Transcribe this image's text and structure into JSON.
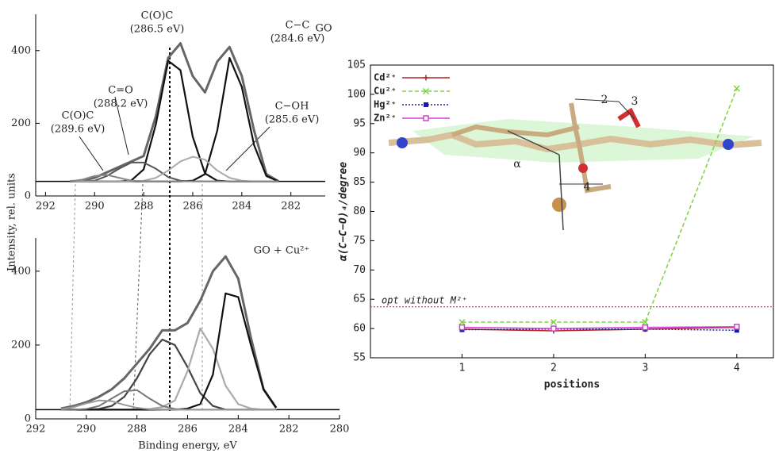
{
  "chart_data": [
    {
      "type": "line",
      "ylabel": "Intensity, rel. units",
      "xlim": [
        292.4,
        280.6
      ],
      "xticks": [
        292,
        290,
        288,
        286,
        284,
        282
      ],
      "ylim": [
        0,
        500
      ],
      "yticks": [
        0,
        200,
        400
      ],
      "baseline": 40,
      "x": [
        291,
        290.5,
        290,
        289.5,
        289,
        288.5,
        288,
        287.5,
        287,
        286.5,
        286,
        285.5,
        285,
        284.5,
        284,
        283.5,
        283,
        282.5
      ],
      "series": [
        {
          "color": "#666666",
          "width": 3,
          "values": [
            40,
            42,
            50,
            65,
            80,
            95,
            110,
            220,
            380,
            420,
            330,
            285,
            370,
            410,
            330,
            180,
            60,
            40
          ]
        },
        {
          "color": "#111111",
          "width": 2.2,
          "values": [
            40,
            40,
            40,
            40,
            40,
            43,
            73,
            198,
            372,
            346,
            163,
            62,
            42,
            40,
            40,
            40,
            40,
            40
          ]
        },
        {
          "color": "#111111",
          "width": 2.2,
          "values": [
            40,
            40,
            40,
            40,
            40,
            40,
            40,
            40,
            40,
            40,
            42,
            60,
            180,
            380,
            300,
            140,
            55,
            40
          ]
        },
        {
          "color": "#555555",
          "width": 2,
          "values": [
            40,
            40,
            42,
            55,
            75,
            92,
            92,
            75,
            52,
            42,
            40,
            40,
            40,
            40,
            40,
            40,
            40,
            40
          ]
        },
        {
          "color": "#aaaaaa",
          "width": 2,
          "values": [
            40,
            40,
            40,
            40,
            40,
            40,
            42,
            50,
            70,
            95,
            108,
            100,
            70,
            50,
            42,
            40,
            40,
            40
          ]
        },
        {
          "color": "#888888",
          "width": 2,
          "values": [
            40,
            45,
            55,
            58,
            50,
            42,
            40,
            40,
            40,
            40,
            40,
            40,
            40,
            40,
            40,
            40,
            40,
            40
          ]
        }
      ],
      "annotations": [
        {
          "lines": [
            "C(O)C",
            "(286.5 eV)"
          ]
        },
        {
          "lines": [
            "C−C",
            "(284.6 eV)"
          ]
        },
        {
          "lines": [
            "GO"
          ]
        },
        {
          "lines": [
            "C=O",
            "(288.2 eV)"
          ]
        },
        {
          "lines": [
            "C(O)C",
            "(289.6 eV)"
          ]
        },
        {
          "lines": [
            "C−OH",
            "(285.6 eV)"
          ]
        }
      ]
    },
    {
      "type": "line",
      "xlabel": "Binding energy, eV",
      "xlim": [
        292,
        280
      ],
      "xticks": [
        292,
        290,
        288,
        286,
        284,
        282,
        280
      ],
      "ylim": [
        0,
        490
      ],
      "yticks": [
        0,
        200,
        400
      ],
      "baseline": 25,
      "x": [
        291,
        290.5,
        290,
        289.5,
        289,
        288.5,
        288,
        287.5,
        287,
        286.5,
        286,
        285.5,
        285,
        284.5,
        284,
        283.5,
        283,
        282.5
      ],
      "series": [
        {
          "color": "#666666",
          "width": 3,
          "values": [
            28,
            35,
            45,
            60,
            80,
            110,
            150,
            190,
            240,
            240,
            260,
            320,
            400,
            440,
            380,
            220,
            80,
            30
          ]
        },
        {
          "color": "#444444",
          "width": 2.2,
          "values": [
            25,
            25,
            25,
            27,
            35,
            60,
            110,
            175,
            215,
            200,
            140,
            70,
            35,
            25,
            25,
            25,
            25,
            25
          ]
        },
        {
          "color": "#aaaaaa",
          "width": 2.2,
          "values": [
            25,
            25,
            25,
            25,
            25,
            25,
            25,
            27,
            32,
            50,
            130,
            245,
            190,
            90,
            40,
            28,
            25,
            25
          ]
        },
        {
          "color": "#111111",
          "width": 2.2,
          "values": [
            25,
            25,
            25,
            25,
            25,
            25,
            25,
            25,
            25,
            25,
            28,
            40,
            120,
            340,
            330,
            200,
            80,
            30
          ]
        },
        {
          "color": "#777777",
          "width": 2,
          "values": [
            25,
            25,
            27,
            35,
            55,
            75,
            78,
            55,
            35,
            27,
            25,
            25,
            25,
            25,
            25,
            25,
            25,
            25
          ]
        },
        {
          "color": "#999999",
          "width": 2,
          "values": [
            26,
            32,
            42,
            50,
            48,
            38,
            30,
            26,
            25,
            25,
            25,
            25,
            25,
            25,
            25,
            25,
            25,
            25
          ]
        }
      ],
      "annotations": [
        {
          "lines": [
            "GO + Cu²⁺"
          ]
        }
      ]
    },
    {
      "type": "line",
      "xlabel": "positions",
      "ylabel": "α(C−C−O)₄/degree",
      "xlim": [
        0,
        4.4
      ],
      "xticks": [
        1,
        2,
        3,
        4
      ],
      "ylim": [
        55,
        105
      ],
      "yticks": [
        55,
        60,
        65,
        70,
        75,
        80,
        85,
        90,
        95,
        100,
        105
      ],
      "x": [
        1,
        2,
        3,
        4
      ],
      "series": [
        {
          "name": "Cd²⁺",
          "color": "#b22222",
          "dash": "solid",
          "marker": "plus",
          "values": [
            59.9,
            59.6,
            59.9,
            60.2
          ]
        },
        {
          "name": "Cu²⁺",
          "color": "#7ed23c",
          "dash": "dashed",
          "marker": "cross",
          "values": [
            61.1,
            61.1,
            61.1,
            101
          ]
        },
        {
          "name": "Hg²⁺",
          "color": "#1a1aa8",
          "dash": "dotted",
          "marker": "square",
          "values": [
            59.8,
            59.9,
            59.9,
            59.7
          ]
        },
        {
          "name": "Zn²⁺",
          "color": "#d040d0",
          "dash": "solid",
          "marker": "open-square",
          "values": [
            60.2,
            60.0,
            60.2,
            60.3
          ]
        }
      ],
      "reference_line": {
        "value": 63.7,
        "label": "opt without M²⁺",
        "color": "#a03050"
      },
      "figure_labels": [
        "α",
        "2",
        "3",
        "4"
      ]
    }
  ]
}
